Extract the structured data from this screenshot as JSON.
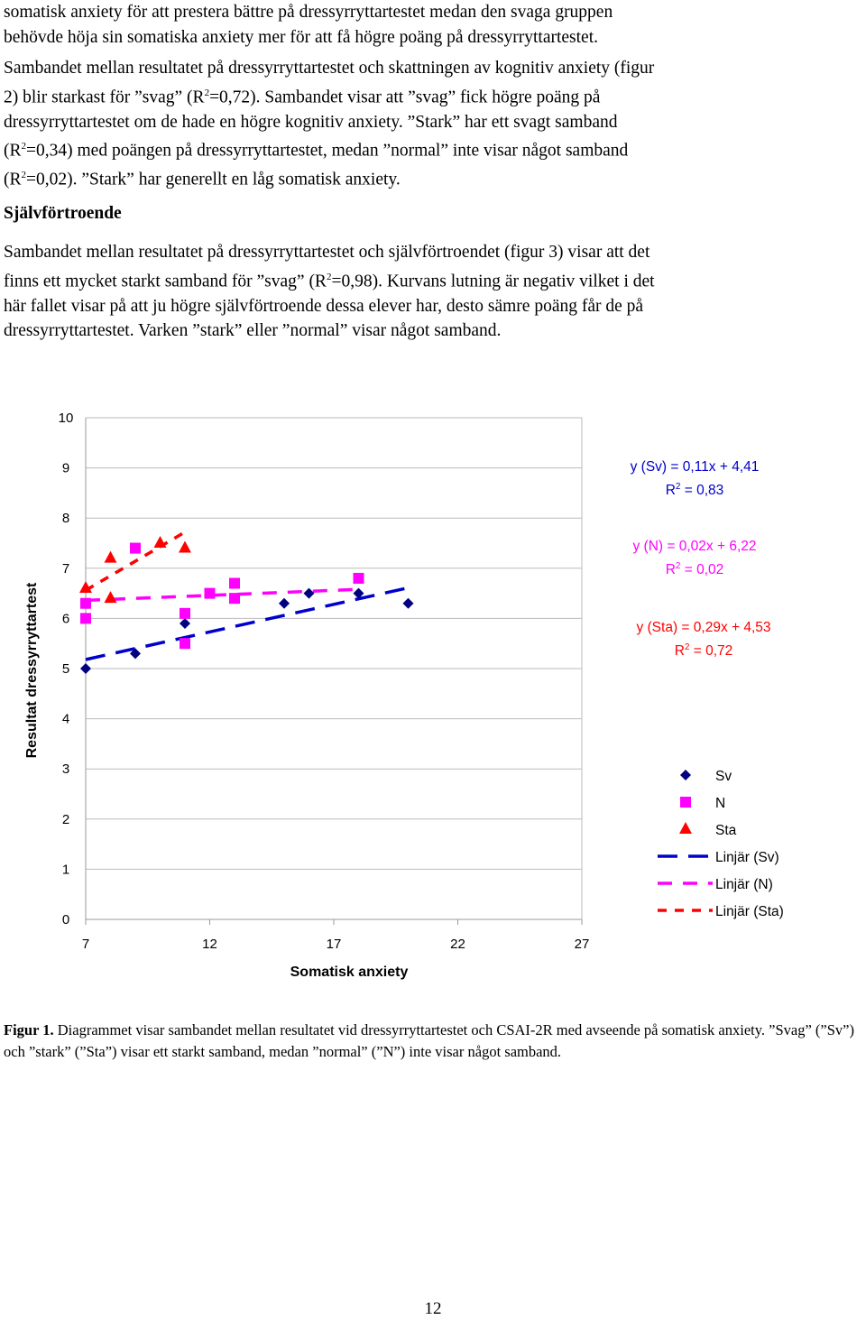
{
  "text": {
    "p1_line1": "somatisk anxiety för att prestera bättre på dressyrryttartestet medan den svaga gruppen",
    "p1_line2": "behövde höja sin somatiska anxiety mer för att få högre poäng på dressyrryttartestet.",
    "p2_line1": "Sambandet mellan resultatet på dressyrryttartestet och skattningen av kognitiv anxiety (figur",
    "p2_line2a": "2) blir starkast för ”svag” (R",
    "p2_line2b": "=0,72). Sambandet visar att ”svag” fick högre poäng på",
    "p2_line3": "dressyrryttartestet om de hade en högre kognitiv anxiety. ”Stark” har ett svagt samband",
    "p2_line4a": "(R",
    "p2_line4b": "=0,34) med poängen på dressyrryttartestet, medan ”normal” inte visar något samband",
    "p2_line5a": "(R",
    "p2_line5b": "=0,02). ”Stark” har generellt en låg somatisk anxiety.",
    "sup2": "2",
    "heading": "Självförtroende",
    "p3_line1": "Sambandet mellan resultatet på dressyrryttartestet och självförtroendet (figur 3) visar att det",
    "p3_line2a": "finns ett mycket starkt samband för ”svag” (R",
    "p3_line2b": "=0,98). Kurvans lutning är negativ vilket i det",
    "p3_line3": "här fallet visar på att ju högre självförtroende dessa elever har, desto sämre poäng får de på",
    "p3_line4": "dressyrryttartestet. Varken ”stark” eller ”normal” visar något samband."
  },
  "caption": {
    "label": "Figur 1.",
    "text": " Diagrammet visar sambandet mellan resultatet vid dressyrryttartestet och CSAI-2R med avseende på somatisk anxiety. ”Svag” (”Sv”) och  ”stark” (”Sta”) visar ett starkt samband, medan ”normal” (”N”) inte visar något samband."
  },
  "page_number": "12",
  "chart_data": {
    "type": "scatter",
    "xlabel": "Somatisk anxiety",
    "ylabel": "Resultat dressyrryttartest",
    "xlim": [
      7,
      27
    ],
    "ylim": [
      0,
      10
    ],
    "xticks": [
      "7",
      "12",
      "17",
      "22",
      "27"
    ],
    "yticks": [
      "0",
      "1",
      "2",
      "3",
      "4",
      "5",
      "6",
      "7",
      "8",
      "9",
      "10"
    ],
    "grid": "horizontal",
    "legend_position": "right",
    "series": [
      {
        "name": "Sv",
        "marker": "diamond",
        "color": "#000080",
        "points": [
          [
            7,
            5.0
          ],
          [
            9,
            5.3
          ],
          [
            11,
            5.9
          ],
          [
            15,
            6.3
          ],
          [
            16,
            6.5
          ],
          [
            18,
            6.5
          ],
          [
            20,
            6.3
          ]
        ]
      },
      {
        "name": "N",
        "marker": "square",
        "color": "#FF00FF",
        "points": [
          [
            7,
            6.3
          ],
          [
            7,
            6.0
          ],
          [
            9,
            7.4
          ],
          [
            11,
            6.1
          ],
          [
            11,
            5.5
          ],
          [
            12,
            6.5
          ],
          [
            13,
            6.7
          ],
          [
            13,
            6.4
          ],
          [
            18,
            6.8
          ]
        ]
      },
      {
        "name": "Sta",
        "marker": "triangle",
        "color": "#FF0000",
        "points": [
          [
            7,
            6.6
          ],
          [
            8,
            7.2
          ],
          [
            8,
            6.4
          ],
          [
            10,
            7.5
          ],
          [
            11,
            7.4
          ]
        ]
      }
    ],
    "trendlines": [
      {
        "name": "Linjär (Sv)",
        "color": "#0000CC",
        "dash": "long",
        "x": [
          7,
          20
        ],
        "equation": "y (Sv) = 0,11x + 4,41",
        "r2": "R",
        "r2_value": " = 0,83"
      },
      {
        "name": "Linjär (N)",
        "color": "#FF00FF",
        "dash": "medium",
        "x": [
          7,
          18
        ],
        "equation": "y (N) = 0,02x + 6,22",
        "r2": "R",
        "r2_value": " = 0,02"
      },
      {
        "name": "Linjär (Sta)",
        "color": "#FF0000",
        "dash": "short",
        "x": [
          7,
          11
        ],
        "equation": "y (Sta) = 0,29x + 4,53",
        "r2": "R",
        "r2_value": " = 0,72"
      }
    ]
  }
}
